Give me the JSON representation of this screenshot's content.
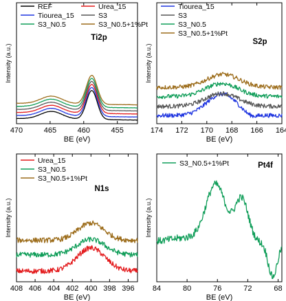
{
  "chart_data": [
    {
      "type": "line",
      "panel_label": "Ti2p",
      "xlabel": "BE (eV)",
      "ylabel": "Intensity (a.u.)",
      "xlim": [
        470,
        452
      ],
      "x_reversed": true,
      "ylim": [
        0,
        1
      ],
      "xticks": [
        470,
        465,
        460,
        455
      ],
      "legend": [
        {
          "name": "REF",
          "color": "#000000"
        },
        {
          "name": "Urea_15",
          "color": "#e31a1c"
        },
        {
          "name": "Tiourea_15",
          "color": "#1f35e0"
        },
        {
          "name": "S3",
          "color": "#555555"
        },
        {
          "name": "S3_N0.5",
          "color": "#0f9d58"
        },
        {
          "name": "S3_N0.5+1%Pt",
          "color": "#9c6c1a"
        }
      ],
      "series": [
        {
          "name": "REF",
          "offset": 0.0,
          "peaks": [
            [
              464.8,
              0.1,
              1.6
            ],
            [
              458.8,
              0.38,
              0.8
            ]
          ]
        },
        {
          "name": "Tiourea_15",
          "offset": 0.04,
          "peaks": [
            [
              464.8,
              0.1,
              1.6
            ],
            [
              458.8,
              0.38,
              0.8
            ]
          ]
        },
        {
          "name": "Urea_15",
          "offset": 0.08,
          "peaks": [
            [
              464.8,
              0.1,
              1.6
            ],
            [
              458.8,
              0.38,
              0.8
            ]
          ]
        },
        {
          "name": "S3",
          "offset": 0.12,
          "peaks": [
            [
              464.8,
              0.1,
              1.6
            ],
            [
              458.8,
              0.38,
              0.8
            ]
          ]
        },
        {
          "name": "S3_N0.5",
          "offset": 0.16,
          "peaks": [
            [
              464.8,
              0.1,
              1.6
            ],
            [
              458.8,
              0.38,
              0.8
            ]
          ]
        },
        {
          "name": "S3_N0.5+1%Pt",
          "offset": 0.2,
          "peaks": [
            [
              464.8,
              0.1,
              1.6
            ],
            [
              458.8,
              0.38,
              0.8
            ]
          ]
        }
      ]
    },
    {
      "type": "line",
      "panel_label": "S2p",
      "xlabel": "BE (eV)",
      "ylabel": "Intensity (a.u.)",
      "xlim": [
        174,
        164
      ],
      "x_reversed": true,
      "ylim": [
        0,
        1
      ],
      "xticks": [
        174,
        172,
        170,
        168,
        166,
        164
      ],
      "legend": [
        {
          "name": "Tiourea_15",
          "color": "#1f35e0"
        },
        {
          "name": "S3",
          "color": "#555555"
        },
        {
          "name": "S3_N0.5",
          "color": "#0f9d58"
        },
        {
          "name": "S3_N0.5+1%Pt",
          "color": "#9c6c1a"
        }
      ],
      "series": [
        {
          "name": "Tiourea_15",
          "offset": 0.06,
          "peaks": [
            [
              168.8,
              0.28,
              1.2
            ],
            [
              166.5,
              -0.04,
              0.5
            ]
          ]
        },
        {
          "name": "S3",
          "offset": 0.18,
          "peaks": [
            [
              168.8,
              0.17,
              1.3
            ]
          ]
        },
        {
          "name": "S3_N0.5",
          "offset": 0.31,
          "peaks": [
            [
              168.8,
              0.17,
              1.3
            ]
          ]
        },
        {
          "name": "S3_N0.5+1%Pt",
          "offset": 0.43,
          "peaks": [
            [
              168.7,
              0.17,
              1.3
            ]
          ]
        }
      ]
    },
    {
      "type": "line",
      "panel_label": "N1s",
      "xlabel": "BE (eV)",
      "ylabel": "Intensity (a.u.)",
      "xlim": [
        408,
        395
      ],
      "x_reversed": true,
      "ylim": [
        0,
        1
      ],
      "xticks": [
        408,
        406,
        404,
        402,
        400,
        398,
        396
      ],
      "legend": [
        {
          "name": "Urea_15",
          "color": "#e31a1c"
        },
        {
          "name": "S3_N0.5",
          "color": "#0f9d58"
        },
        {
          "name": "S3_N0.5+1%Pt",
          "color": "#9c6c1a"
        }
      ],
      "series": [
        {
          "name": "Urea_15",
          "offset": 0.08,
          "peaks": [
            [
              400.0,
              0.27,
              1.5
            ]
          ]
        },
        {
          "name": "S3_N0.5",
          "offset": 0.27,
          "peaks": [
            [
              400.0,
              0.18,
              1.5
            ]
          ]
        },
        {
          "name": "S3_N0.5+1%Pt",
          "offset": 0.44,
          "peaks": [
            [
              400.0,
              0.2,
              1.4
            ]
          ]
        }
      ]
    },
    {
      "type": "line",
      "panel_label": "Pt4f",
      "xlabel": "BE (eV)",
      "ylabel": "Intensity (a.u.)",
      "xlim": [
        84,
        67.5
      ],
      "x_reversed": true,
      "ylim": [
        0,
        1
      ],
      "xticks": [
        84,
        80,
        76,
        72,
        68
      ],
      "legend": [
        {
          "name": "S3_N0.5+1%Pt",
          "color": "#0f9d58"
        }
      ],
      "series": [
        {
          "name": "S3_N0.5+1%Pt",
          "offset": 0.3,
          "peaks": [
            [
              76.2,
              0.5,
              1.3
            ],
            [
              72.8,
              0.38,
              0.9
            ],
            [
              68.7,
              -0.3,
              0.6
            ],
            [
              80.0,
              0.04,
              2.5
            ]
          ]
        }
      ]
    }
  ]
}
